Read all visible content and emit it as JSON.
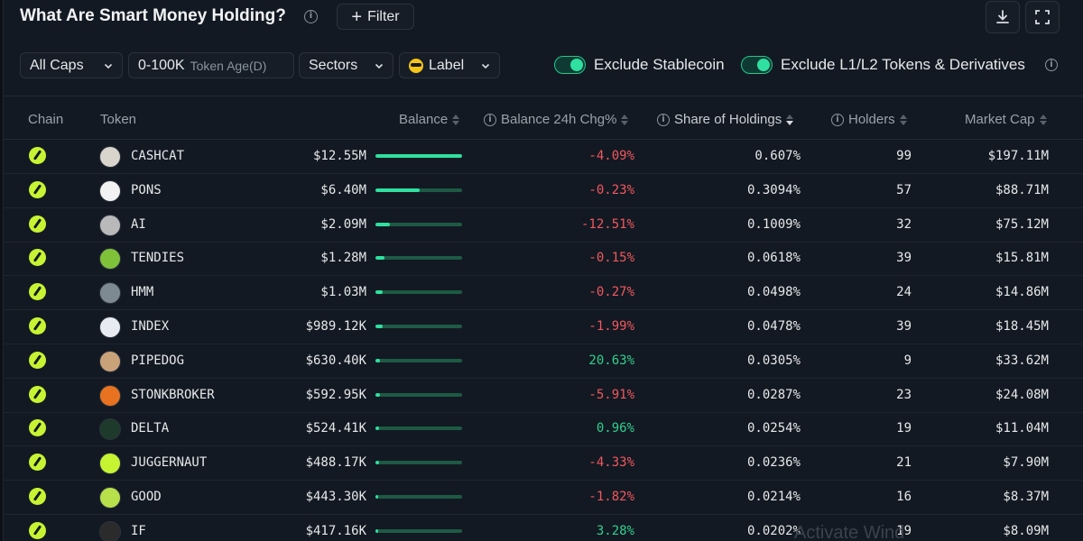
{
  "header": {
    "title": "What Are Smart Money Holding?",
    "filter_label": "Filter"
  },
  "filters": {
    "caps": "All Caps",
    "token_age_value": "0-100K",
    "token_age_label": "Token Age(D)",
    "sectors": "Sectors",
    "label": "Label",
    "exclude_stablecoin": "Exclude Stablecoin",
    "exclude_l1l2": "Exclude L1/L2 Tokens & Derivatives",
    "exclude_stablecoin_on": true,
    "exclude_l1l2_on": true
  },
  "columns": {
    "chain": "Chain",
    "token": "Token",
    "balance": "Balance",
    "balance_chg": "Balance 24h Chg%",
    "share": "Share of Holdings",
    "holders": "Holders",
    "market_cap": "Market Cap"
  },
  "colors": {
    "accent": "#2fe0a0",
    "negative": "#f0585f",
    "positive": "#2fd08e",
    "chain": "#c6f432"
  },
  "rows": [
    {
      "token": "CASHCAT",
      "balance": "$12.55M",
      "bar": 1.0,
      "chg": "-4.09%",
      "dir": "neg",
      "share": "0.607%",
      "holders": "99",
      "mcap": "$197.11M",
      "icon_color": "#d9d4cc"
    },
    {
      "token": "PONS",
      "balance": "$6.40M",
      "bar": 0.51,
      "chg": "-0.23%",
      "dir": "neg",
      "share": "0.3094%",
      "holders": "57",
      "mcap": "$88.71M",
      "icon_color": "#f2f2f2"
    },
    {
      "token": "AI",
      "balance": "$2.09M",
      "bar": 0.167,
      "chg": "-12.51%",
      "dir": "neg",
      "share": "0.1009%",
      "holders": "32",
      "mcap": "$75.12M",
      "icon_color": "#b9b9b9"
    },
    {
      "token": "TENDIES",
      "balance": "$1.28M",
      "bar": 0.102,
      "chg": "-0.15%",
      "dir": "neg",
      "share": "0.0618%",
      "holders": "39",
      "mcap": "$15.81M",
      "icon_color": "#7fc23a"
    },
    {
      "token": "HMM",
      "balance": "$1.03M",
      "bar": 0.082,
      "chg": "-0.27%",
      "dir": "neg",
      "share": "0.0498%",
      "holders": "24",
      "mcap": "$14.86M",
      "icon_color": "#7d8a92"
    },
    {
      "token": "INDEX",
      "balance": "$989.12K",
      "bar": 0.079,
      "chg": "-1.99%",
      "dir": "neg",
      "share": "0.0478%",
      "holders": "39",
      "mcap": "$18.45M",
      "icon_color": "#e8ecf2"
    },
    {
      "token": "PIPEDOG",
      "balance": "$630.40K",
      "bar": 0.05,
      "chg": "20.63%",
      "dir": "pos",
      "share": "0.0305%",
      "holders": "9",
      "mcap": "$33.62M",
      "icon_color": "#caa27a"
    },
    {
      "token": "STONKBROKER",
      "balance": "$592.95K",
      "bar": 0.047,
      "chg": "-5.91%",
      "dir": "neg",
      "share": "0.0287%",
      "holders": "23",
      "mcap": "$24.08M",
      "icon_color": "#e8721f"
    },
    {
      "token": "DELTA",
      "balance": "$524.41K",
      "bar": 0.042,
      "chg": "0.96%",
      "dir": "pos",
      "share": "0.0254%",
      "holders": "19",
      "mcap": "$11.04M",
      "icon_color": "#1e3a2a"
    },
    {
      "token": "JUGGERNAUT",
      "balance": "$488.17K",
      "bar": 0.039,
      "chg": "-4.33%",
      "dir": "neg",
      "share": "0.0236%",
      "holders": "21",
      "mcap": "$7.90M",
      "icon_color": "#c6f432"
    },
    {
      "token": "GOOD",
      "balance": "$443.30K",
      "bar": 0.035,
      "chg": "-1.82%",
      "dir": "neg",
      "share": "0.0214%",
      "holders": "16",
      "mcap": "$8.37M",
      "icon_color": "#b8e04a"
    },
    {
      "token": "IF",
      "balance": "$417.16K",
      "bar": 0.033,
      "chg": "3.28%",
      "dir": "pos",
      "share": "0.0202%",
      "holders": "19",
      "mcap": "$8.09M",
      "icon_color": "#2b2b2b"
    }
  ],
  "watermark": "Activate Wind"
}
